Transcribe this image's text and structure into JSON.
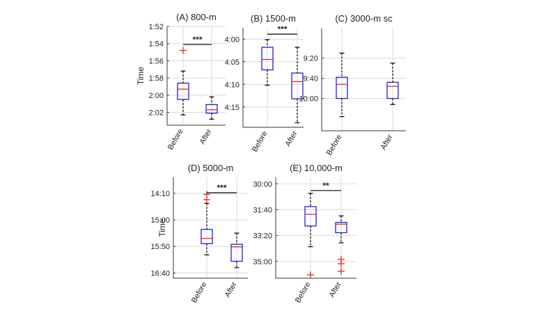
{
  "colors": {
    "box": "#1f1fd6",
    "median": "#e0282a",
    "outlier": "#e0282a",
    "whisker": "#000000",
    "grid": "#d9d9d9",
    "axis": "#333333"
  },
  "y_axis_label": "Time",
  "chart_data": [
    {
      "type": "box",
      "title": "(A) 800-m",
      "ylabel": "Time",
      "y_reversed": true,
      "ylim": [
        112,
        123.5
      ],
      "y_ticks": [
        112,
        114,
        116,
        118,
        120,
        122
      ],
      "y_tick_labels": [
        "1:52",
        "1:54",
        "1:56",
        "1:58",
        "2:00",
        "2:02"
      ],
      "categories": [
        "Before",
        "After"
      ],
      "boxes": [
        {
          "category": "Before",
          "min": 117.2,
          "q1": 118.6,
          "median": 119.3,
          "q3": 120.5,
          "max": 122.3,
          "outliers": [
            114.8
          ]
        },
        {
          "category": "After",
          "min": 120.2,
          "q1": 121.1,
          "median": 121.7,
          "q3": 122.1,
          "max": 122.8,
          "outliers": []
        }
      ],
      "significance": {
        "label": "***",
        "between": [
          "Before",
          "After"
        ],
        "y": 114.1
      },
      "grid": true
    },
    {
      "type": "box",
      "title": "(B) 1500-m",
      "ylabel": "",
      "y_reversed": true,
      "ylim": [
        237.5,
        259.5
      ],
      "y_ticks": [
        240,
        245,
        250,
        255
      ],
      "y_tick_labels": [
        "4:00",
        "4:05",
        "4:10",
        "4:15"
      ],
      "categories": [
        "Before",
        "After"
      ],
      "boxes": [
        {
          "category": "Before",
          "min": 240.1,
          "q1": 241.8,
          "median": 244.5,
          "q3": 246.8,
          "max": 250.2,
          "outliers": []
        },
        {
          "category": "After",
          "min": 241.8,
          "q1": 247.5,
          "median": 249.4,
          "q3": 253.2,
          "max": 258.5,
          "outliers": []
        }
      ],
      "significance": {
        "label": "***",
        "between": [
          "Before",
          "After"
        ],
        "y": 238.9
      },
      "grid": true
    },
    {
      "type": "box",
      "title": "(C) 3000-m sc",
      "ylabel": "",
      "y_reversed": true,
      "ylim": [
        530,
        632
      ],
      "y_ticks": [
        560,
        580,
        600
      ],
      "y_tick_labels": [
        "9:20",
        "9:40",
        "10:00"
      ],
      "categories": [
        "Before",
        "After"
      ],
      "boxes": [
        {
          "category": "Before",
          "min": 555,
          "q1": 579,
          "median": 586,
          "q3": 600,
          "max": 618,
          "outliers": []
        },
        {
          "category": "After",
          "min": 565,
          "q1": 584,
          "median": 588,
          "q3": 600,
          "max": 606,
          "outliers": []
        }
      ],
      "significance": null,
      "grid": true
    },
    {
      "type": "box",
      "title": "(D) 5000-m",
      "ylabel": "Time",
      "y_reversed": true,
      "ylim": [
        820,
        1010
      ],
      "y_ticks": [
        850,
        900,
        950,
        1000
      ],
      "y_tick_labels": [
        "14:10",
        "15:00",
        "15:50",
        "16:40"
      ],
      "categories": [
        "Before",
        "After"
      ],
      "boxes": [
        {
          "category": "Before",
          "min": 869,
          "q1": 918,
          "median": 935,
          "q3": 945,
          "max": 966,
          "outliers": [
            852,
            862
          ]
        },
        {
          "category": "After",
          "min": 925,
          "q1": 946,
          "median": 951,
          "q3": 978,
          "max": 990,
          "outliers": []
        }
      ],
      "significance": {
        "label": "***",
        "between": [
          "Before",
          "After"
        ],
        "y": 849
      },
      "grid": true
    },
    {
      "type": "box",
      "title": "(E) 10,000-m",
      "ylabel": "",
      "y_reversed": true,
      "ylim": [
        1775,
        2165
      ],
      "y_ticks": [
        1800,
        1900,
        2000,
        2100
      ],
      "y_tick_labels": [
        "30:00",
        "31:40",
        "33:20",
        "35:00"
      ],
      "categories": [
        "Before",
        "After"
      ],
      "boxes": [
        {
          "category": "Before",
          "min": 1837,
          "q1": 1888,
          "median": 1918,
          "q3": 1963,
          "max": 2043,
          "outliers": [
            2152
          ]
        },
        {
          "category": "After",
          "min": 1924,
          "q1": 1949,
          "median": 1956,
          "q3": 1989,
          "max": 2028,
          "outliers": [
            2092,
            2109,
            2138
          ]
        }
      ],
      "significance": {
        "label": "**",
        "between": [
          "Before",
          "After"
        ],
        "y": 1826
      },
      "grid": true
    }
  ]
}
